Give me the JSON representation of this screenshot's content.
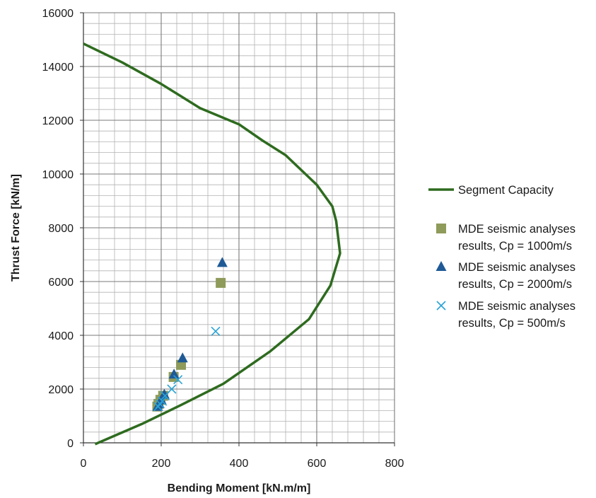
{
  "chart_data": {
    "type": "scatter",
    "xlabel": "Bending Moment [kN.m/m]",
    "ylabel": "Thrust Force [kN/m]",
    "xlim": [
      0,
      800
    ],
    "ylim": [
      0,
      16000
    ],
    "x_ticks": [
      0,
      200,
      400,
      600,
      800
    ],
    "y_ticks": [
      0,
      2000,
      4000,
      6000,
      8000,
      10000,
      12000,
      14000,
      16000
    ],
    "grid": true,
    "legend_position": "right",
    "series": [
      {
        "name": "Segment Capacity",
        "kind": "line",
        "color": "#2e6b1f",
        "points": [
          [
            0,
            14850
          ],
          [
            100,
            14150
          ],
          [
            200,
            13350
          ],
          [
            300,
            12450
          ],
          [
            400,
            11850
          ],
          [
            460,
            11250
          ],
          [
            520,
            10700
          ],
          [
            600,
            9600
          ],
          [
            640,
            8800
          ],
          [
            650,
            8250
          ],
          [
            660,
            7050
          ],
          [
            635,
            5850
          ],
          [
            580,
            4600
          ],
          [
            480,
            3400
          ],
          [
            360,
            2200
          ],
          [
            250,
            1400
          ],
          [
            150,
            700
          ],
          [
            70,
            200
          ],
          [
            30,
            -50
          ]
        ]
      },
      {
        "name": "MDE seismic analyses results, Cp = 1000m/s",
        "legend_lines": [
          "MDE seismic analyses",
          "results, Cp = 1000m/s"
        ],
        "kind": "scatter",
        "marker": "square",
        "color": "#8e9b5a",
        "points": [
          [
            353,
            5950
          ],
          [
            251,
            2900
          ],
          [
            232,
            2450
          ],
          [
            205,
            1750
          ],
          [
            198,
            1600
          ],
          [
            193,
            1450
          ],
          [
            190,
            1350
          ]
        ]
      },
      {
        "name": "MDE seismic analyses results, Cp = 2000m/s",
        "legend_lines": [
          "MDE seismic analyses",
          "results, Cp = 2000m/s"
        ],
        "kind": "scatter",
        "marker": "triangle",
        "color": "#1f5a96",
        "points": [
          [
            357,
            6700
          ],
          [
            255,
            3150
          ],
          [
            233,
            2550
          ],
          [
            208,
            1800
          ],
          [
            200,
            1600
          ],
          [
            195,
            1450
          ],
          [
            191,
            1350
          ]
        ]
      },
      {
        "name": "MDE seismic analyses results, Cp = 500m/s",
        "legend_lines": [
          "MDE seismic analyses",
          "results, Cp = 500m/s"
        ],
        "kind": "scatter",
        "marker": "x",
        "color": "#29a3d6",
        "points": [
          [
            340,
            4150
          ],
          [
            243,
            2350
          ],
          [
            227,
            2000
          ],
          [
            210,
            1750
          ],
          [
            203,
            1550
          ],
          [
            197,
            1450
          ],
          [
            192,
            1350
          ]
        ]
      }
    ]
  }
}
